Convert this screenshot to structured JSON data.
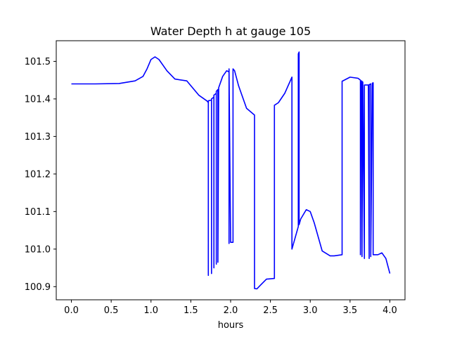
{
  "chart_data": {
    "type": "line",
    "title": "Water Depth h at gauge 105",
    "xlabel": "hours",
    "ylabel": "",
    "xlim": [
      -0.19,
      4.19
    ],
    "ylim": [
      100.865,
      101.555
    ],
    "xticks": [
      0.0,
      0.5,
      1.0,
      1.5,
      2.0,
      2.5,
      3.0,
      3.5,
      4.0
    ],
    "xtick_labels": [
      "0.0",
      "0.5",
      "1.0",
      "1.5",
      "2.0",
      "2.5",
      "3.0",
      "3.5",
      "4.0"
    ],
    "yticks": [
      100.9,
      101.0,
      101.1,
      101.2,
      101.3,
      101.4,
      101.5
    ],
    "ytick_labels": [
      "100.9",
      "101.0",
      "101.1",
      "101.2",
      "101.3",
      "101.4",
      "101.5"
    ],
    "grid": false,
    "series": [
      {
        "color": "#0000ff",
        "x": [
          0.0,
          0.3,
          0.6,
          0.8,
          0.9,
          0.95,
          1.0,
          1.05,
          1.1,
          1.2,
          1.3,
          1.45,
          1.6,
          1.7,
          1.71,
          1.72,
          1.72,
          1.72,
          1.76,
          1.76,
          1.76,
          1.79,
          1.79,
          1.79,
          1.82,
          1.82,
          1.82,
          1.84,
          1.84,
          1.85,
          1.9,
          1.95,
          1.98,
          1.98,
          1.98,
          2.0,
          2.03,
          2.03,
          2.05,
          2.1,
          2.2,
          2.3,
          2.3,
          2.33,
          2.38,
          2.45,
          2.55,
          2.55,
          2.6,
          2.68,
          2.77,
          2.77,
          2.77,
          2.85,
          2.85,
          2.86,
          2.86,
          2.88,
          2.95,
          3.0,
          3.05,
          3.15,
          3.25,
          3.3,
          3.4,
          3.4,
          3.5,
          3.6,
          3.63,
          3.63,
          3.64,
          3.65,
          3.65,
          3.66,
          3.68,
          3.68,
          3.73,
          3.74,
          3.74,
          3.76,
          3.76,
          3.78,
          3.79,
          3.79,
          3.8,
          3.85,
          3.9,
          3.95,
          4.0
        ],
        "y": [
          101.44,
          101.44,
          101.441,
          101.448,
          101.46,
          101.48,
          101.505,
          101.512,
          101.505,
          101.475,
          101.453,
          101.448,
          101.41,
          101.395,
          101.393,
          101.39,
          100.93,
          101.395,
          101.397,
          100.935,
          101.4,
          101.405,
          100.95,
          101.41,
          101.415,
          100.96,
          101.42,
          101.425,
          100.965,
          101.43,
          101.46,
          101.475,
          101.472,
          101.015,
          101.48,
          101.018,
          101.018,
          101.48,
          101.475,
          101.435,
          101.375,
          101.357,
          100.895,
          100.894,
          100.905,
          100.92,
          100.922,
          101.383,
          101.39,
          101.415,
          101.458,
          101.0,
          101.0,
          101.06,
          101.52,
          101.525,
          101.065,
          101.08,
          101.105,
          101.1,
          101.07,
          100.995,
          100.982,
          100.982,
          100.985,
          101.447,
          101.458,
          101.455,
          101.45,
          100.985,
          101.448,
          101.447,
          100.98,
          101.445,
          100.975,
          101.437,
          101.437,
          100.975,
          101.438,
          101.44,
          100.98,
          101.442,
          101.443,
          100.985,
          100.985,
          100.985,
          100.99,
          100.975,
          100.935
        ]
      }
    ]
  }
}
